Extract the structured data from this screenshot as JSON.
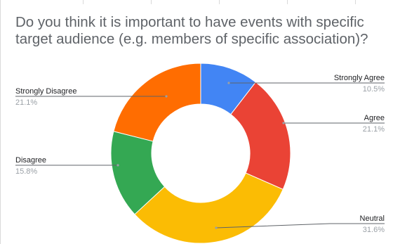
{
  "title": "Do you think it is important to have events with specific target audience (e.g. members of specific association)?",
  "chart_data": {
    "type": "pie",
    "style": "donut",
    "title": "Do you think it is important to have events with specific target audience (e.g. members of specific association)?",
    "slices": [
      {
        "label": "Strongly Agree",
        "percent_label": "10.5%",
        "value": 10.5,
        "color": "#4285f4"
      },
      {
        "label": "Agree",
        "percent_label": "21.1%",
        "value": 21.1,
        "color": "#ea4335"
      },
      {
        "label": "Neutral",
        "percent_label": "31.6%",
        "value": 31.6,
        "color": "#fbbc04"
      },
      {
        "label": "Disagree",
        "percent_label": "15.8%",
        "value": 15.8,
        "color": "#34a853"
      },
      {
        "label": "Strongly Disagree",
        "percent_label": "21.1%",
        "value": 21.1,
        "color": "#ff6d01"
      }
    ]
  }
}
